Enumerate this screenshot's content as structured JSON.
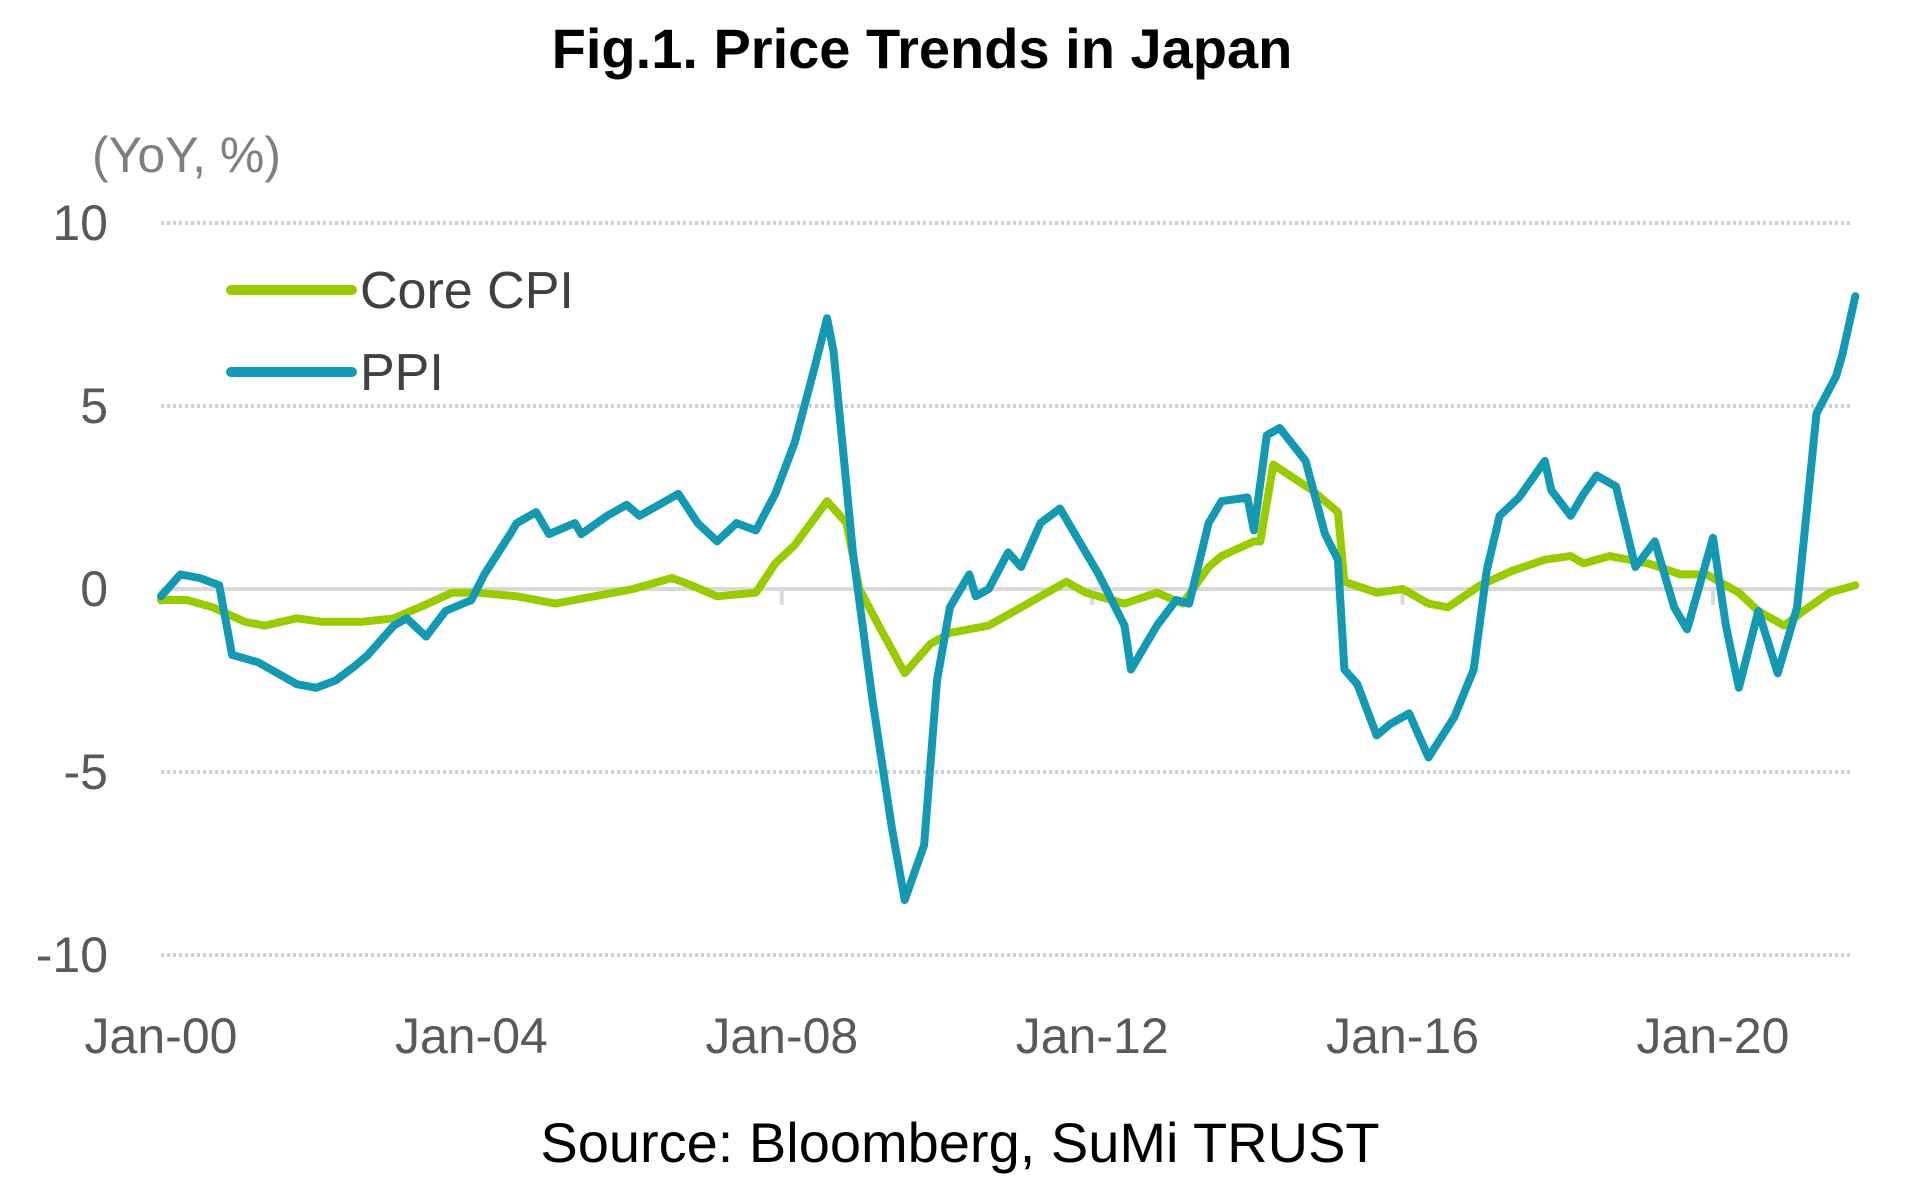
{
  "chart_data": {
    "type": "line",
    "title": "Fig.1. Price Trends in Japan",
    "ylabel": "(YoY, %)",
    "xlabel": "",
    "source": "Source: Bloomberg, SuMi TRUST",
    "ylim": [
      -10,
      10
    ],
    "yticks": [
      "10",
      "5",
      "0",
      "-5",
      "-10"
    ],
    "ytick_values": [
      10,
      5,
      0,
      -5,
      -10
    ],
    "xticks": [
      "Jan-00",
      "Jan-04",
      "Jan-08",
      "Jan-12",
      "Jan-16",
      "Jan-20"
    ],
    "xtick_dates": [
      "2000-01",
      "2004-01",
      "2008-01",
      "2012-01",
      "2016-01",
      "2020-01"
    ],
    "xlim": [
      "2000-01",
      "2021-11"
    ],
    "grid": "horizontal dotted",
    "legend_position": "top-left",
    "series": [
      {
        "name": "Core CPI",
        "color": "#99cc00",
        "points": [
          [
            "2000-01",
            -0.3
          ],
          [
            "2000-05",
            -0.3
          ],
          [
            "2000-09",
            -0.5
          ],
          [
            "2001-02",
            -0.9
          ],
          [
            "2001-05",
            -1.0
          ],
          [
            "2001-10",
            -0.8
          ],
          [
            "2002-02",
            -0.9
          ],
          [
            "2002-08",
            -0.9
          ],
          [
            "2003-01",
            -0.8
          ],
          [
            "2003-05",
            -0.5
          ],
          [
            "2003-10",
            -0.1
          ],
          [
            "2004-02",
            -0.1
          ],
          [
            "2004-08",
            -0.2
          ],
          [
            "2005-02",
            -0.4
          ],
          [
            "2005-08",
            -0.2
          ],
          [
            "2006-02",
            0.0
          ],
          [
            "2006-08",
            0.3
          ],
          [
            "2006-11",
            0.1
          ],
          [
            "2007-03",
            -0.2
          ],
          [
            "2007-09",
            -0.1
          ],
          [
            "2007-12",
            0.7
          ],
          [
            "2008-03",
            1.2
          ],
          [
            "2008-08",
            2.4
          ],
          [
            "2008-11",
            1.8
          ],
          [
            "2009-01",
            0.0
          ],
          [
            "2009-04",
            -1.0
          ],
          [
            "2009-08",
            -2.3
          ],
          [
            "2009-12",
            -1.5
          ],
          [
            "2010-03",
            -1.2
          ],
          [
            "2010-09",
            -1.0
          ],
          [
            "2011-01",
            -0.6
          ],
          [
            "2011-05",
            -0.2
          ],
          [
            "2011-09",
            0.2
          ],
          [
            "2011-12",
            -0.1
          ],
          [
            "2012-06",
            -0.4
          ],
          [
            "2012-11",
            -0.1
          ],
          [
            "2013-03",
            -0.4
          ],
          [
            "2013-07",
            0.6
          ],
          [
            "2013-09",
            0.9
          ],
          [
            "2014-02",
            1.3
          ],
          [
            "2014-03",
            1.3
          ],
          [
            "2014-05",
            3.4
          ],
          [
            "2014-11",
            2.7
          ],
          [
            "2015-03",
            2.1
          ],
          [
            "2015-04",
            0.2
          ],
          [
            "2015-09",
            -0.1
          ],
          [
            "2016-01",
            0.0
          ],
          [
            "2016-05",
            -0.4
          ],
          [
            "2016-08",
            -0.5
          ],
          [
            "2017-01",
            0.1
          ],
          [
            "2017-06",
            0.5
          ],
          [
            "2017-11",
            0.8
          ],
          [
            "2018-03",
            0.9
          ],
          [
            "2018-05",
            0.7
          ],
          [
            "2018-09",
            0.9
          ],
          [
            "2019-03",
            0.7
          ],
          [
            "2019-08",
            0.4
          ],
          [
            "2019-12",
            0.4
          ],
          [
            "2020-05",
            -0.1
          ],
          [
            "2020-08",
            -0.6
          ],
          [
            "2020-12",
            -1.0
          ],
          [
            "2021-03",
            -0.6
          ],
          [
            "2021-07",
            -0.1
          ],
          [
            "2021-11",
            0.1
          ]
        ]
      },
      {
        "name": "PPI",
        "color": "#1499b3",
        "points": [
          [
            "2000-01",
            -0.2
          ],
          [
            "2000-04",
            0.4
          ],
          [
            "2000-07",
            0.3
          ],
          [
            "2000-10",
            0.1
          ],
          [
            "2000-12",
            -1.8
          ],
          [
            "2001-04",
            -2.0
          ],
          [
            "2001-07",
            -2.3
          ],
          [
            "2001-10",
            -2.6
          ],
          [
            "2002-01",
            -2.7
          ],
          [
            "2002-04",
            -2.5
          ],
          [
            "2002-07",
            -2.1
          ],
          [
            "2002-09",
            -1.8
          ],
          [
            "2003-01",
            -1.0
          ],
          [
            "2003-03",
            -0.8
          ],
          [
            "2003-06",
            -1.3
          ],
          [
            "2003-09",
            -0.6
          ],
          [
            "2004-01",
            -0.3
          ],
          [
            "2004-03",
            0.4
          ],
          [
            "2004-07",
            1.5
          ],
          [
            "2004-08",
            1.8
          ],
          [
            "2004-11",
            2.1
          ],
          [
            "2005-01",
            1.5
          ],
          [
            "2005-05",
            1.8
          ],
          [
            "2005-06",
            1.5
          ],
          [
            "2005-10",
            2.0
          ],
          [
            "2006-01",
            2.3
          ],
          [
            "2006-03",
            2.0
          ],
          [
            "2006-07",
            2.4
          ],
          [
            "2006-09",
            2.6
          ],
          [
            "2006-12",
            1.8
          ],
          [
            "2007-03",
            1.3
          ],
          [
            "2007-06",
            1.8
          ],
          [
            "2007-09",
            1.6
          ],
          [
            "2007-12",
            2.6
          ],
          [
            "2008-03",
            4.0
          ],
          [
            "2008-06",
            6.0
          ],
          [
            "2008-08",
            7.4
          ],
          [
            "2008-09",
            6.5
          ],
          [
            "2008-12",
            1.0
          ],
          [
            "2009-03",
            -3.0
          ],
          [
            "2009-06",
            -6.5
          ],
          [
            "2009-08",
            -8.5
          ],
          [
            "2009-11",
            -7.0
          ],
          [
            "2010-01",
            -2.5
          ],
          [
            "2010-03",
            -0.5
          ],
          [
            "2010-06",
            0.4
          ],
          [
            "2010-07",
            -0.2
          ],
          [
            "2010-09",
            0.0
          ],
          [
            "2010-12",
            1.0
          ],
          [
            "2011-02",
            0.6
          ],
          [
            "2011-05",
            1.8
          ],
          [
            "2011-08",
            2.2
          ],
          [
            "2011-11",
            1.3
          ],
          [
            "2012-02",
            0.4
          ],
          [
            "2012-06",
            -1.0
          ],
          [
            "2012-07",
            -2.2
          ],
          [
            "2012-11",
            -1.0
          ],
          [
            "2013-02",
            -0.3
          ],
          [
            "2013-04",
            -0.4
          ],
          [
            "2013-07",
            1.8
          ],
          [
            "2013-09",
            2.4
          ],
          [
            "2014-01",
            2.5
          ],
          [
            "2014-02",
            1.6
          ],
          [
            "2014-04",
            4.2
          ],
          [
            "2014-06",
            4.4
          ],
          [
            "2014-10",
            3.5
          ],
          [
            "2015-01",
            1.5
          ],
          [
            "2015-03",
            0.8
          ],
          [
            "2015-04",
            -2.2
          ],
          [
            "2015-06",
            -2.6
          ],
          [
            "2015-09",
            -4.0
          ],
          [
            "2015-11",
            -3.7
          ],
          [
            "2016-02",
            -3.4
          ],
          [
            "2016-05",
            -4.6
          ],
          [
            "2016-09",
            -3.5
          ],
          [
            "2016-12",
            -2.2
          ],
          [
            "2017-02",
            0.5
          ],
          [
            "2017-04",
            2.0
          ],
          [
            "2017-07",
            2.5
          ],
          [
            "2017-11",
            3.5
          ],
          [
            "2017-12",
            2.7
          ],
          [
            "2018-03",
            2.0
          ],
          [
            "2018-05",
            2.6
          ],
          [
            "2018-07",
            3.1
          ],
          [
            "2018-10",
            2.8
          ],
          [
            "2019-01",
            0.6
          ],
          [
            "2019-04",
            1.3
          ],
          [
            "2019-07",
            -0.5
          ],
          [
            "2019-09",
            -1.1
          ],
          [
            "2020-01",
            1.4
          ],
          [
            "2020-03",
            -1.0
          ],
          [
            "2020-05",
            -2.7
          ],
          [
            "2020-08",
            -0.6
          ],
          [
            "2020-11",
            -2.3
          ],
          [
            "2021-02",
            -0.5
          ],
          [
            "2021-05",
            4.8
          ],
          [
            "2021-08",
            5.8
          ],
          [
            "2021-09",
            6.4
          ],
          [
            "2021-11",
            8.0
          ]
        ]
      }
    ]
  }
}
